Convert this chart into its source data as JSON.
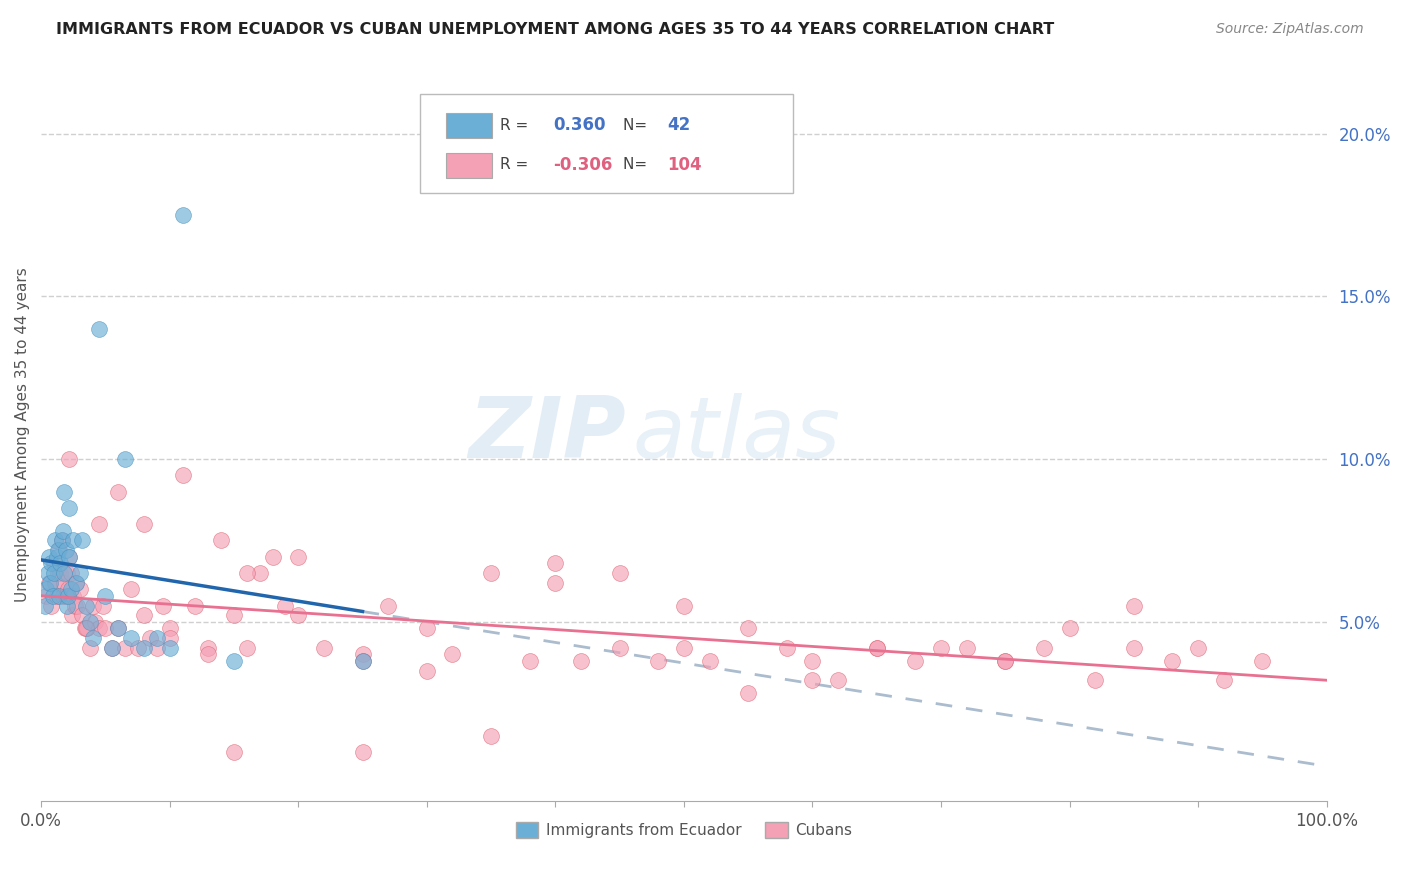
{
  "title": "IMMIGRANTS FROM ECUADOR VS CUBAN UNEMPLOYMENT AMONG AGES 35 TO 44 YEARS CORRELATION CHART",
  "source": "Source: ZipAtlas.com",
  "ylabel": "Unemployment Among Ages 35 to 44 years",
  "xlim": [
    0,
    1.0
  ],
  "ylim": [
    -0.005,
    0.22
  ],
  "ecuador_color": "#6baed6",
  "cuban_color": "#f4a0b5",
  "ecuador_line_color": "#2166ac",
  "cuban_line_color": "#e87090",
  "dashed_line_color": "#aabcce",
  "legend_ecuador_label": "Immigrants from Ecuador",
  "legend_cuban_label": "Cubans",
  "R_ecuador": 0.36,
  "N_ecuador": 42,
  "R_cuban": -0.306,
  "N_cuban": 104,
  "watermark_zip": "ZIP",
  "watermark_atlas": "atlas",
  "ecuador_x": [
    0.003,
    0.004,
    0.005,
    0.006,
    0.007,
    0.008,
    0.009,
    0.01,
    0.011,
    0.012,
    0.013,
    0.014,
    0.015,
    0.016,
    0.017,
    0.018,
    0.019,
    0.02,
    0.021,
    0.022,
    0.023,
    0.025,
    0.027,
    0.03,
    0.032,
    0.035,
    0.038,
    0.04,
    0.045,
    0.05,
    0.055,
    0.06,
    0.065,
    0.07,
    0.08,
    0.09,
    0.1,
    0.11,
    0.15,
    0.25,
    0.022,
    0.018
  ],
  "ecuador_y": [
    0.055,
    0.06,
    0.065,
    0.07,
    0.062,
    0.068,
    0.058,
    0.065,
    0.075,
    0.07,
    0.072,
    0.058,
    0.068,
    0.075,
    0.078,
    0.065,
    0.072,
    0.055,
    0.058,
    0.07,
    0.06,
    0.075,
    0.062,
    0.065,
    0.075,
    0.055,
    0.05,
    0.045,
    0.14,
    0.058,
    0.042,
    0.048,
    0.1,
    0.045,
    0.042,
    0.045,
    0.042,
    0.175,
    0.038,
    0.038,
    0.085,
    0.09
  ],
  "cuban_x": [
    0.004,
    0.006,
    0.008,
    0.01,
    0.011,
    0.012,
    0.013,
    0.014,
    0.015,
    0.016,
    0.017,
    0.018,
    0.019,
    0.02,
    0.021,
    0.022,
    0.023,
    0.024,
    0.025,
    0.026,
    0.027,
    0.028,
    0.03,
    0.032,
    0.034,
    0.036,
    0.038,
    0.04,
    0.042,
    0.045,
    0.048,
    0.05,
    0.055,
    0.06,
    0.065,
    0.07,
    0.075,
    0.08,
    0.085,
    0.09,
    0.095,
    0.1,
    0.11,
    0.12,
    0.13,
    0.14,
    0.15,
    0.16,
    0.17,
    0.18,
    0.19,
    0.2,
    0.22,
    0.25,
    0.27,
    0.3,
    0.32,
    0.35,
    0.38,
    0.4,
    0.42,
    0.45,
    0.48,
    0.5,
    0.52,
    0.55,
    0.58,
    0.6,
    0.62,
    0.65,
    0.68,
    0.7,
    0.72,
    0.75,
    0.78,
    0.8,
    0.82,
    0.85,
    0.88,
    0.9,
    0.92,
    0.95,
    0.15,
    0.25,
    0.35,
    0.035,
    0.022,
    0.045,
    0.06,
    0.08,
    0.1,
    0.13,
    0.16,
    0.2,
    0.25,
    0.3,
    0.4,
    0.5,
    0.6,
    0.75,
    0.45,
    0.55,
    0.65,
    0.85
  ],
  "cuban_y": [
    0.058,
    0.062,
    0.055,
    0.068,
    0.062,
    0.058,
    0.065,
    0.072,
    0.065,
    0.075,
    0.058,
    0.062,
    0.058,
    0.065,
    0.06,
    0.07,
    0.065,
    0.052,
    0.058,
    0.055,
    0.062,
    0.055,
    0.06,
    0.052,
    0.048,
    0.048,
    0.042,
    0.055,
    0.05,
    0.048,
    0.055,
    0.048,
    0.042,
    0.048,
    0.042,
    0.06,
    0.042,
    0.052,
    0.045,
    0.042,
    0.055,
    0.048,
    0.095,
    0.055,
    0.042,
    0.075,
    0.052,
    0.042,
    0.065,
    0.07,
    0.055,
    0.052,
    0.042,
    0.04,
    0.055,
    0.048,
    0.04,
    0.065,
    0.038,
    0.068,
    0.038,
    0.042,
    0.038,
    0.042,
    0.038,
    0.028,
    0.042,
    0.038,
    0.032,
    0.042,
    0.038,
    0.042,
    0.042,
    0.038,
    0.042,
    0.048,
    0.032,
    0.042,
    0.038,
    0.042,
    0.032,
    0.038,
    0.01,
    0.01,
    0.015,
    0.048,
    0.1,
    0.08,
    0.09,
    0.08,
    0.045,
    0.04,
    0.065,
    0.07,
    0.038,
    0.035,
    0.062,
    0.055,
    0.032,
    0.038,
    0.065,
    0.048,
    0.042,
    0.055
  ]
}
